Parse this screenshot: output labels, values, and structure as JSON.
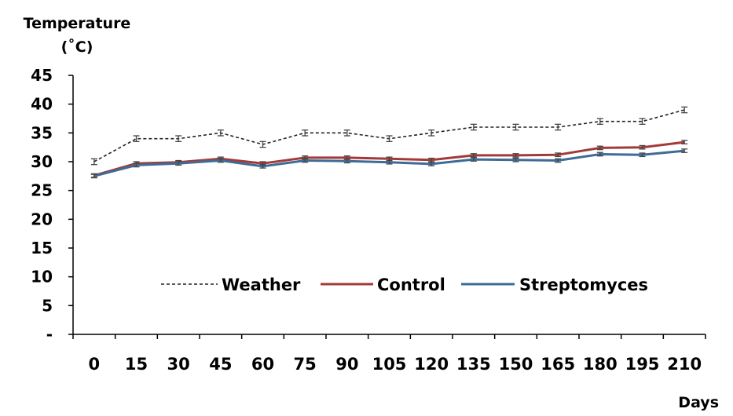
{
  "chart_data": {
    "type": "line",
    "ylabel_line1": "Temperature",
    "ylabel_line2": "(˚C)",
    "xlabel": "Days",
    "x": [
      0,
      15,
      30,
      45,
      60,
      75,
      90,
      105,
      120,
      135,
      150,
      165,
      180,
      195,
      210
    ],
    "x_tick_labels": [
      "0",
      "15",
      "30",
      "45",
      "60",
      "75",
      "90",
      "105",
      "120",
      "135",
      "150",
      "165",
      "180",
      "195",
      "210"
    ],
    "ylim": [
      0,
      45
    ],
    "y_ticks": [
      0,
      5,
      10,
      15,
      20,
      25,
      30,
      35,
      40,
      45
    ],
    "y_tick_labels": [
      "-",
      "5",
      "10",
      "15",
      "20",
      "25",
      "30",
      "35",
      "40",
      "45"
    ],
    "legend_position": "center",
    "grid": false,
    "error_bars": true,
    "series": [
      {
        "name": "Weather",
        "color": "#222222",
        "style": "dashed",
        "values": [
          30,
          34,
          34,
          35,
          33,
          35,
          35,
          34,
          35,
          36,
          36,
          36,
          37,
          37,
          39
        ],
        "error": [
          0.5,
          0.5,
          0.5,
          0.5,
          0.5,
          0.5,
          0.5,
          0.5,
          0.5,
          0.5,
          0.5,
          0.5,
          0.5,
          0.5,
          0.5
        ]
      },
      {
        "name": "Control",
        "color": "#a33a3a",
        "style": "solid",
        "values": [
          27.6,
          29.7,
          29.9,
          30.5,
          29.7,
          30.7,
          30.7,
          30.5,
          30.3,
          31.1,
          31.1,
          31.2,
          32.4,
          32.5,
          33.4
        ],
        "error": [
          0.3,
          0.3,
          0.3,
          0.3,
          0.3,
          0.3,
          0.3,
          0.3,
          0.3,
          0.3,
          0.3,
          0.3,
          0.3,
          0.3,
          0.3
        ]
      },
      {
        "name": "Streptomyces",
        "color": "#3e6c96",
        "style": "solid",
        "values": [
          27.5,
          29.4,
          29.7,
          30.2,
          29.2,
          30.2,
          30.1,
          29.9,
          29.6,
          30.4,
          30.3,
          30.2,
          31.3,
          31.2,
          31.9
        ],
        "error": [
          0.3,
          0.3,
          0.3,
          0.3,
          0.3,
          0.3,
          0.3,
          0.3,
          0.3,
          0.3,
          0.3,
          0.3,
          0.3,
          0.3,
          0.3
        ]
      }
    ]
  }
}
